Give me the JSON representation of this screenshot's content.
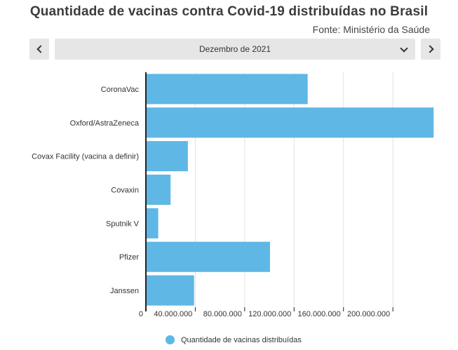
{
  "title": "Quantidade de vacinas contra Covid-19 distribuídas no Brasil",
  "subtitle": "Fonte: Ministério da Saúde",
  "selector": {
    "value": "Dezembro de 2021",
    "prev_icon": "chevron-left-icon",
    "next_icon": "chevron-right-icon",
    "dropdown_icon": "chevron-down-icon"
  },
  "colors": {
    "bar": "#5fb7e5",
    "grid": "#e3e3e3",
    "axis": "#222222"
  },
  "chart_data": {
    "type": "bar",
    "orientation": "horizontal",
    "categories": [
      "CoronaVac",
      "Oxford/AstraZeneca",
      "Covax Facility (vacina a definir)",
      "Covaxin",
      "Sputnik V",
      "Pfizer",
      "Janssen"
    ],
    "series": [
      {
        "name": "Quantidade de vacinas distribuídas",
        "values": [
          131000000,
          233000000,
          34000000,
          20000000,
          10000000,
          100500000,
          39000000
        ]
      }
    ],
    "xlim": [
      0,
      234000000
    ],
    "xticks": [
      0,
      40000000,
      80000000,
      120000000,
      160000000,
      200000000
    ],
    "xtick_labels": [
      "0",
      "40.000.000",
      "80.000.000",
      "120.000.000",
      "160.000.000",
      "200.000.000"
    ],
    "grid": true,
    "legend_position": "bottom"
  }
}
